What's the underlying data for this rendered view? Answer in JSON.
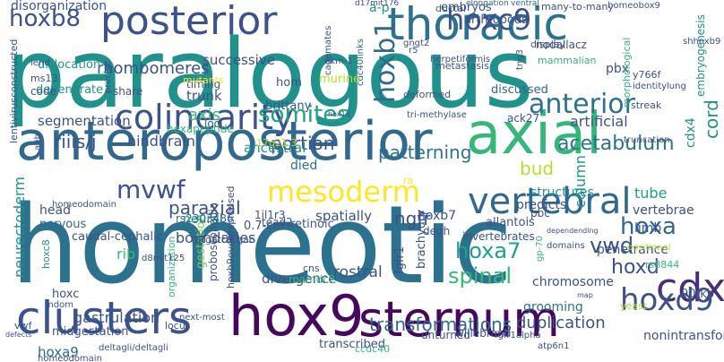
{
  "palette": {
    "background": "#ffffff",
    "dark_purple": "#46085c",
    "purple": "#472d7b",
    "indigo": "#3b528b",
    "blue": "#31688e",
    "steel_blue": "#2c728e",
    "teal": "#21918c",
    "green_teal": "#1fa188",
    "green": "#35b779",
    "light_green": "#6ece58",
    "lime": "#b5de2b",
    "yellow": "#fde725"
  },
  "words": [
    {
      "text": "paralogous",
      "color": "#21918c"
    },
    {
      "text": "homeotic",
      "color": "#2c728e"
    },
    {
      "text": "anteroposterior",
      "color": "#31688e"
    },
    {
      "text": "axial",
      "color": "#35b779"
    },
    {
      "text": "sternum",
      "color": "#46085c"
    },
    {
      "text": "clusters",
      "color": "#3b528b"
    },
    {
      "text": "hox9",
      "color": "#46085c"
    },
    {
      "text": "thoracic",
      "color": "#2c728e"
    },
    {
      "text": "posterior",
      "color": "#3b528b"
    },
    {
      "text": "colinearity",
      "color": "#3b528b"
    },
    {
      "text": "vertebral",
      "color": "#31688e"
    },
    {
      "text": "mesoderm",
      "color": "#fde725"
    },
    {
      "text": "hoxc9",
      "color": "#3b528b"
    },
    {
      "text": "hoxb1",
      "color": "#31688e"
    },
    {
      "text": "hoxb8",
      "color": "#3b528b"
    },
    {
      "text": "mvwf",
      "color": "#3b528b"
    },
    {
      "text": "anterior",
      "color": "#2c728e"
    },
    {
      "text": "acetabulum",
      "color": "#2c728e"
    },
    {
      "text": "somites",
      "color": "#1fa188"
    },
    {
      "text": "cdx",
      "color": "#472d7b"
    },
    {
      "text": "hoxd9",
      "color": "#3b528b"
    },
    {
      "text": "vwd",
      "color": "#3b528b"
    },
    {
      "text": "riiis/j",
      "color": "#3b528b"
    },
    {
      "text": "hoxa",
      "color": "#31688e"
    },
    {
      "text": "hoxa7",
      "color": "#1fa188"
    },
    {
      "text": "spinal",
      "color": "#35b779"
    },
    {
      "text": "hoxd",
      "color": "#3b528b"
    },
    {
      "text": "gastrulation",
      "color": "#3b528b"
    },
    {
      "text": "transformations",
      "color": "#31688e"
    },
    {
      "text": "duplication",
      "color": "#3b528b"
    },
    {
      "text": "patterning",
      "color": "#2c728e"
    },
    {
      "text": "portion",
      "color": "#3b528b"
    },
    {
      "text": "paraxial",
      "color": "#3b528b"
    },
    {
      "text": "axis",
      "color": "#35b779"
    },
    {
      "text": "cord",
      "color": "#21918c"
    },
    {
      "text": "bud",
      "color": "#b5de2b"
    },
    {
      "text": "rhombomeres",
      "color": "#3b528b"
    },
    {
      "text": "segmentation",
      "color": "#3b528b"
    },
    {
      "text": "successive",
      "color": "#3b528b"
    },
    {
      "text": "embryos",
      "color": "#3b528b"
    },
    {
      "text": "a-p",
      "color": "#21918c"
    },
    {
      "text": "dislocation",
      "color": "#21918c"
    },
    {
      "text": "neurectoderm",
      "color": "#21918c"
    },
    {
      "text": "hindbrain",
      "color": "#3b528b"
    },
    {
      "text": "ancestral",
      "color": "#21918c"
    },
    {
      "text": "chromosome",
      "color": "#3b528b"
    },
    {
      "text": "ngfr",
      "color": "#3b528b"
    },
    {
      "text": "rostral",
      "color": "#3b528b"
    },
    {
      "text": "column",
      "color": "#21918c"
    },
    {
      "text": "boundaries",
      "color": "#3b528b"
    },
    {
      "text": "rib",
      "color": "#35b779"
    },
    {
      "text": "hoxa9",
      "color": "#31688e"
    },
    {
      "text": "cdx4",
      "color": "#21918c"
    },
    {
      "text": "tube",
      "color": "#1fa188"
    },
    {
      "text": "limb",
      "color": "#3b528b"
    },
    {
      "text": "artificial",
      "color": "#3b528b"
    },
    {
      "text": "vertebrae",
      "color": "#3b528b"
    },
    {
      "text": "pbx",
      "color": "#3b528b"
    },
    {
      "text": "trunk",
      "color": "#3b528b"
    },
    {
      "text": "hom",
      "color": "#3b528b"
    },
    {
      "text": "divergence",
      "color": "#3b528b"
    },
    {
      "text": "nonintransforming",
      "color": "#3b528b"
    },
    {
      "text": "penetrance",
      "color": "#3b528b"
    },
    {
      "text": "grooming",
      "color": "#2c728e"
    },
    {
      "text": "predicts",
      "color": "#3b528b"
    },
    {
      "text": "structures",
      "color": "#21918c"
    },
    {
      "text": "died",
      "color": "#2c728e"
    },
    {
      "text": "caudal-cephalic",
      "color": "#3b528b"
    },
    {
      "text": "head",
      "color": "#3b528b"
    },
    {
      "text": "hoxc",
      "color": "#3b528b"
    },
    {
      "text": "midgestation",
      "color": "#3b528b"
    },
    {
      "text": "hoxb7",
      "color": "#3b528b"
    },
    {
      "text": "tead2",
      "color": "#3b528b"
    },
    {
      "text": "embryogenesis",
      "color": "#21918c"
    },
    {
      "text": "neural",
      "color": "#21918c"
    },
    {
      "text": "nervous",
      "color": "#31688e"
    },
    {
      "text": "gestation",
      "color": "#6ece58"
    },
    {
      "text": "spatially",
      "color": "#3b528b"
    },
    {
      "text": "ventral",
      "color": "#31688e"
    },
    {
      "text": "hoxc8",
      "color": "#21918c"
    },
    {
      "text": "discussed",
      "color": "#31688e"
    },
    {
      "text": "homeodomain",
      "color": "#3b528b"
    },
    {
      "text": "loci",
      "color": "#3b528b"
    },
    {
      "text": "cdc40links",
      "color": "#31688e"
    },
    {
      "text": "disorganization",
      "color": "#3b528b"
    },
    {
      "text": "lentivirusconstructed",
      "color": "#3b528b"
    },
    {
      "text": "degenerate",
      "color": "#21918c"
    },
    {
      "text": "hexapeptide",
      "color": "#35b779"
    },
    {
      "text": "cagemates",
      "color": "#3b528b"
    },
    {
      "text": "brittany",
      "color": "#3b528b"
    },
    {
      "text": "murine",
      "color": "#b5de2b"
    },
    {
      "text": "tri-methylase",
      "color": "#3b528b"
    },
    {
      "text": "mammalian",
      "color": "#35b779"
    },
    {
      "text": "morphological",
      "color": "#35b779"
    },
    {
      "text": "deformed",
      "color": "#3b528b"
    },
    {
      "text": "metastasis",
      "color": "#3b528b"
    },
    {
      "text": "y766f",
      "color": "#3b528b"
    },
    {
      "text": "gngt2",
      "color": "#3b528b"
    },
    {
      "text": "elongation",
      "color": "#31688e"
    },
    {
      "text": "arthropods",
      "color": "#3b528b"
    },
    {
      "text": "ductal",
      "color": "#3b528b"
    },
    {
      "text": "many-to-many",
      "color": "#3b528b"
    },
    {
      "text": "homeobox9",
      "color": "#3b528b"
    },
    {
      "text": "nodallacz",
      "color": "#3b528b"
    },
    {
      "text": "shhoxb9",
      "color": "#3b528b"
    },
    {
      "text": "herpetiformis",
      "color": "#3b528b"
    },
    {
      "text": "display",
      "color": "#3b528b"
    },
    {
      "text": "tng3",
      "color": "#3b528b"
    },
    {
      "text": "identity",
      "color": "#3b528b"
    },
    {
      "text": "lung",
      "color": "#3b528b"
    },
    {
      "text": "ack27",
      "color": "#3b528b"
    },
    {
      "text": "truncation",
      "color": "#3b528b"
    },
    {
      "text": "streak",
      "color": "#3b528b"
    },
    {
      "text": "timing",
      "color": "#3b528b"
    },
    {
      "text": "share",
      "color": "#3b528b"
    },
    {
      "text": "code",
      "color": "#3b528b"
    },
    {
      "text": "ms13",
      "color": "#3b528b"
    },
    {
      "text": "lend",
      "color": "#3b528b"
    },
    {
      "text": "precise",
      "color": "#3b528b"
    },
    {
      "text": "rs2303486",
      "color": "#31688e"
    },
    {
      "text": "0.7-cm",
      "color": "#3b528b"
    },
    {
      "text": "atgattacgac",
      "color": "#3b528b"
    },
    {
      "text": "allantois",
      "color": "#3b528b"
    },
    {
      "text": "invertebrates",
      "color": "#3b528b"
    },
    {
      "text": "retinoic",
      "color": "#3b528b"
    },
    {
      "text": "degh",
      "color": "#3b528b"
    },
    {
      "text": "mamdc2",
      "color": "#35b779"
    },
    {
      "text": "brachyury",
      "color": "#3b528b"
    },
    {
      "text": "fgfr1",
      "color": "#3b528b"
    },
    {
      "text": "proboscopedia",
      "color": "#3b528b"
    },
    {
      "text": "hoxb9overexpressed",
      "color": "#3b528b"
    },
    {
      "text": "organization",
      "color": "#35b779"
    },
    {
      "text": "d8mit125",
      "color": "#3b528b"
    },
    {
      "text": "locus",
      "color": "#3b528b"
    },
    {
      "text": "willebrand",
      "color": "#3b528b"
    },
    {
      "text": "unturned",
      "color": "#3b528b"
    },
    {
      "text": "fgfr1alpha",
      "color": "#3b528b"
    },
    {
      "text": "atp6n1",
      "color": "#3b528b"
    },
    {
      "text": "transcribed",
      "color": "#3b528b"
    },
    {
      "text": "ccdc40",
      "color": "#35b779"
    },
    {
      "text": "deltagli/deltagli",
      "color": "#3b528b"
    },
    {
      "text": "homeodomain",
      "color": "#3b528b"
    },
    {
      "text": "90-kb",
      "color": "#3b528b"
    },
    {
      "text": "rs8844",
      "color": "#35b779"
    },
    {
      "text": "yeast",
      "color": "#b5de2b"
    },
    {
      "text": "domains",
      "color": "#3b528b"
    },
    {
      "text": "positional",
      "color": "#b5de2b"
    },
    {
      "text": "cns",
      "color": "#3b528b"
    },
    {
      "text": "mdom",
      "color": "#3b528b"
    },
    {
      "text": "vwf",
      "color": "#3b528b"
    },
    {
      "text": "a9b",
      "color": "#3b528b"
    },
    {
      "text": "next-most",
      "color": "#3b528b"
    },
    {
      "text": "defects",
      "color": "#3b528b"
    },
    {
      "text": "1il1r3",
      "color": "#3b528b"
    },
    {
      "text": "17q21.3",
      "color": "#b5de2b"
    },
    {
      "text": "hox1d",
      "color": "#3b528b"
    },
    {
      "text": "r5",
      "color": "#3b528b"
    },
    {
      "text": "d17mit176",
      "color": "#3b528b"
    },
    {
      "text": "nkm-1",
      "color": "#3b528b"
    },
    {
      "text": "mutants",
      "color": "#fde725"
    },
    {
      "text": "ra",
      "color": "#fde725"
    },
    {
      "text": "pbc",
      "color": "#3b528b"
    },
    {
      "text": "gp-70",
      "color": "#35b779"
    },
    {
      "text": "map",
      "color": "#3b528b"
    },
    {
      "text": "dependending",
      "color": "#3b528b"
    }
  ]
}
